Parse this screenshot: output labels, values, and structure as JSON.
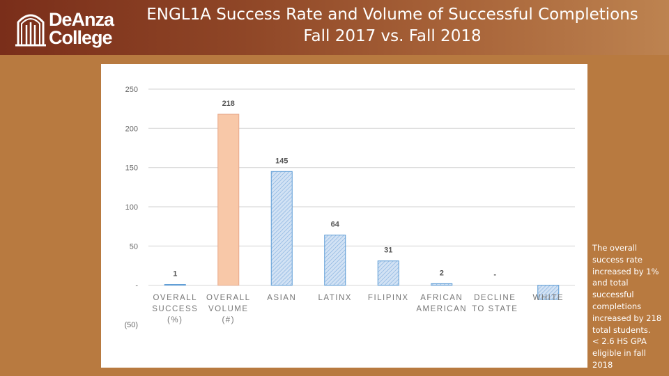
{
  "logo": {
    "line1": "DeAnza",
    "line2": "College",
    "brand_color": "#7a2e1a"
  },
  "title": {
    "line1": "ENGL1A Success Rate and Volume of Successful Completions",
    "line2": "Fall 2017 vs. Fall 2018"
  },
  "note_lines": [
    "The overall success rate increased by 1%",
    "and total successful completions increased by 218 total students.",
    "< 2.6 HS GPA eligible in fall 2018"
  ],
  "chart_data": {
    "type": "bar",
    "categories": [
      [
        "OVERALL",
        "SUCCESS",
        "(%)"
      ],
      [
        "OVERALL",
        "VOLUME",
        "(#)"
      ],
      [
        "ASIAN"
      ],
      [
        "LATINX"
      ],
      [
        "FILIPINX"
      ],
      [
        "AFRICAN",
        "AMERICAN"
      ],
      [
        "DECLINE",
        "TO STATE"
      ],
      [
        "WHITE"
      ]
    ],
    "values": [
      1,
      218,
      145,
      64,
      31,
      2,
      0,
      -18
    ],
    "data_labels": [
      "1",
      "218",
      "145",
      "64",
      "31",
      "2",
      "-",
      ""
    ],
    "ylim": [
      -50,
      250
    ],
    "yticks": [
      250,
      200,
      150,
      100,
      50,
      0,
      -50
    ],
    "ytick_labels": [
      "250",
      "200",
      "150",
      "100",
      "50",
      "-",
      "(50)"
    ],
    "grid": true,
    "colors": {
      "highlight_fill": "#f8c8a8",
      "highlight_stroke": "#e8a88a",
      "bar_fill": "#bcd4ee",
      "bar_stroke": "#5b9bd5",
      "grid": "#d9d9d9"
    },
    "highlight_index": 1
  }
}
